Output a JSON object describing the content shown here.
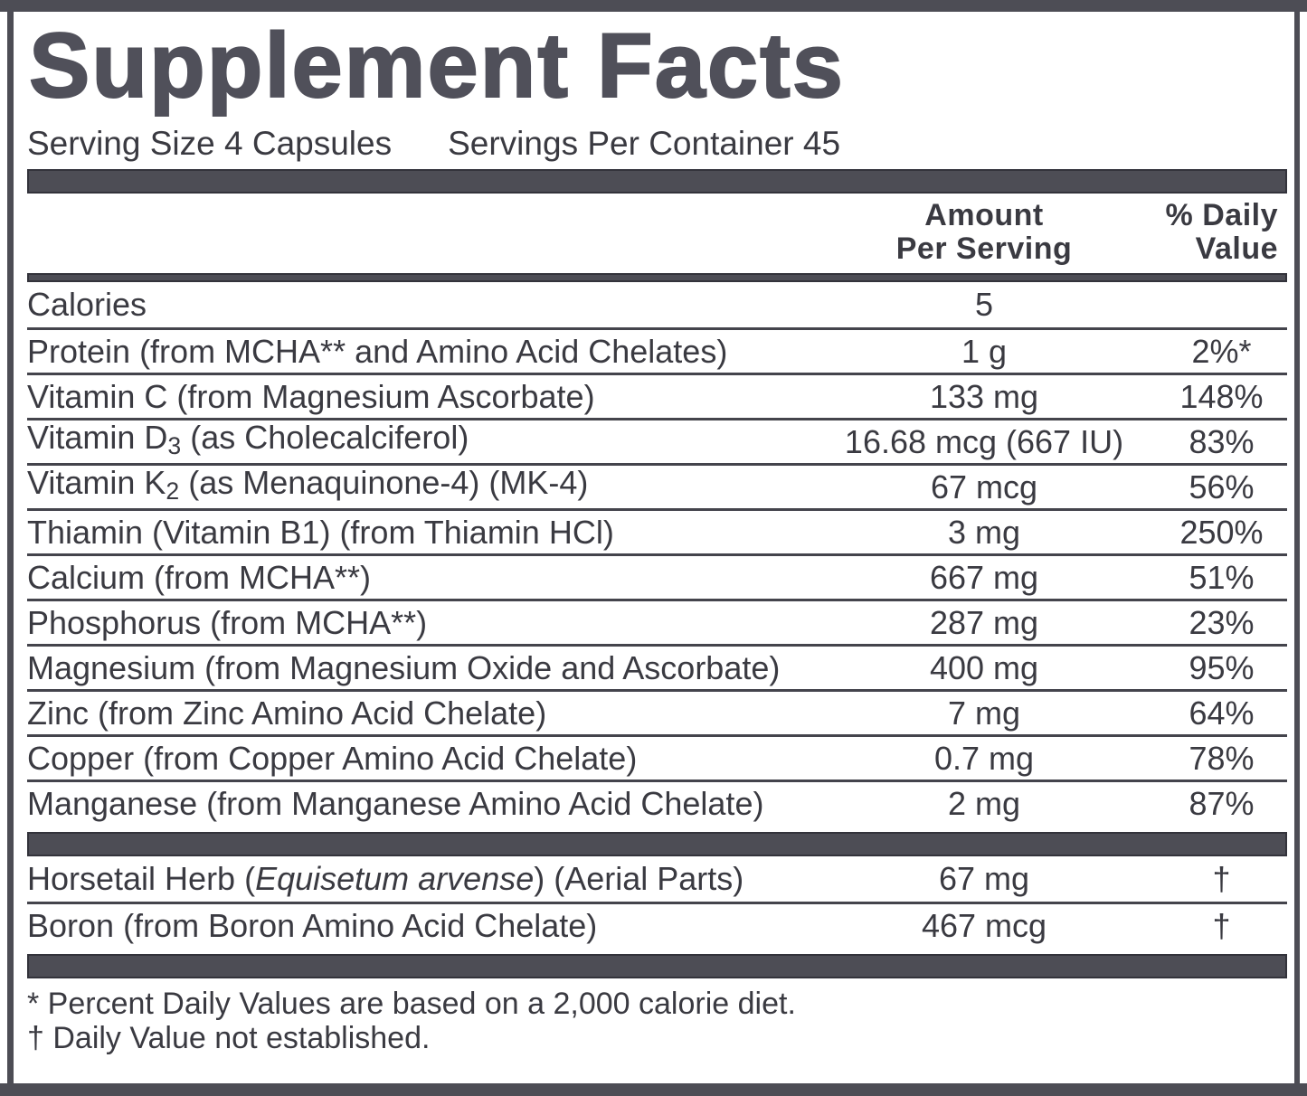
{
  "theme": {
    "bar": "#4d4d55",
    "bar_edge": "#33333b",
    "line": "#44444c",
    "ink": "#3a3a41",
    "ink_heavy": "#50505a",
    "bg": "#ffffff"
  },
  "header": {
    "title": "Supplement Facts",
    "serving_size": "Serving Size 4 Capsules",
    "servings_per_container": "Servings Per Container 45"
  },
  "columns": {
    "amount_line1": "Amount",
    "amount_line2": "Per Serving",
    "dv_line1": "% Daily",
    "dv_line2": "Value"
  },
  "table": {
    "rows": [
      {
        "name_parts": [
          {
            "t": "text",
            "v": "Calories"
          }
        ],
        "amount": "5",
        "dv": ""
      },
      {
        "name_parts": [
          {
            "t": "text",
            "v": "Protein (from MCHA** and Amino Acid Chelates)"
          }
        ],
        "amount": "1 g",
        "dv": "2%*"
      },
      {
        "name_parts": [
          {
            "t": "text",
            "v": "Vitamin C (from Magnesium Ascorbate)"
          }
        ],
        "amount": "133 mg",
        "dv": "148%"
      },
      {
        "name_parts": [
          {
            "t": "text",
            "v": "Vitamin D"
          },
          {
            "t": "sub",
            "v": "3"
          },
          {
            "t": "text",
            "v": " (as Cholecalciferol)"
          }
        ],
        "amount": "16.68 mcg (667 IU)",
        "dv": "83%"
      },
      {
        "name_parts": [
          {
            "t": "text",
            "v": "Vitamin K"
          },
          {
            "t": "sub",
            "v": "2"
          },
          {
            "t": "text",
            "v": " (as Menaquinone-4) (MK-4)"
          }
        ],
        "amount": "67 mcg",
        "dv": "56%"
      },
      {
        "name_parts": [
          {
            "t": "text",
            "v": "Thiamin (Vitamin B1) (from Thiamin HCl)"
          }
        ],
        "amount": "3 mg",
        "dv": "250%"
      },
      {
        "name_parts": [
          {
            "t": "text",
            "v": "Calcium (from MCHA**)"
          }
        ],
        "amount": "667 mg",
        "dv": "51%"
      },
      {
        "name_parts": [
          {
            "t": "text",
            "v": "Phosphorus (from MCHA**)"
          }
        ],
        "amount": "287 mg",
        "dv": "23%"
      },
      {
        "name_parts": [
          {
            "t": "text",
            "v": "Magnesium (from Magnesium Oxide and Ascorbate)"
          }
        ],
        "amount": "400 mg",
        "dv": "95%"
      },
      {
        "name_parts": [
          {
            "t": "text",
            "v": "Zinc (from Zinc Amino Acid Chelate)"
          }
        ],
        "amount": "7 mg",
        "dv": "64%"
      },
      {
        "name_parts": [
          {
            "t": "text",
            "v": "Copper (from Copper Amino Acid Chelate)"
          }
        ],
        "amount": "0.7 mg",
        "dv": "78%"
      },
      {
        "name_parts": [
          {
            "t": "text",
            "v": "Manganese (from Manganese Amino Acid Chelate)"
          }
        ],
        "amount": "2 mg",
        "dv": "87%"
      }
    ],
    "botanical_rows": [
      {
        "name_parts": [
          {
            "t": "text",
            "v": "Horsetail Herb ("
          },
          {
            "t": "italic",
            "v": "Equisetum arvense"
          },
          {
            "t": "text",
            "v": ") (Aerial Parts)"
          }
        ],
        "amount": "67 mg",
        "dv": "†"
      },
      {
        "name_parts": [
          {
            "t": "text",
            "v": "Boron (from Boron Amino Acid Chelate)"
          }
        ],
        "amount": "467 mcg",
        "dv": "†"
      }
    ]
  },
  "footnotes": [
    "* Percent Daily Values are based on a 2,000 calorie diet.",
    "† Daily Value not established."
  ]
}
